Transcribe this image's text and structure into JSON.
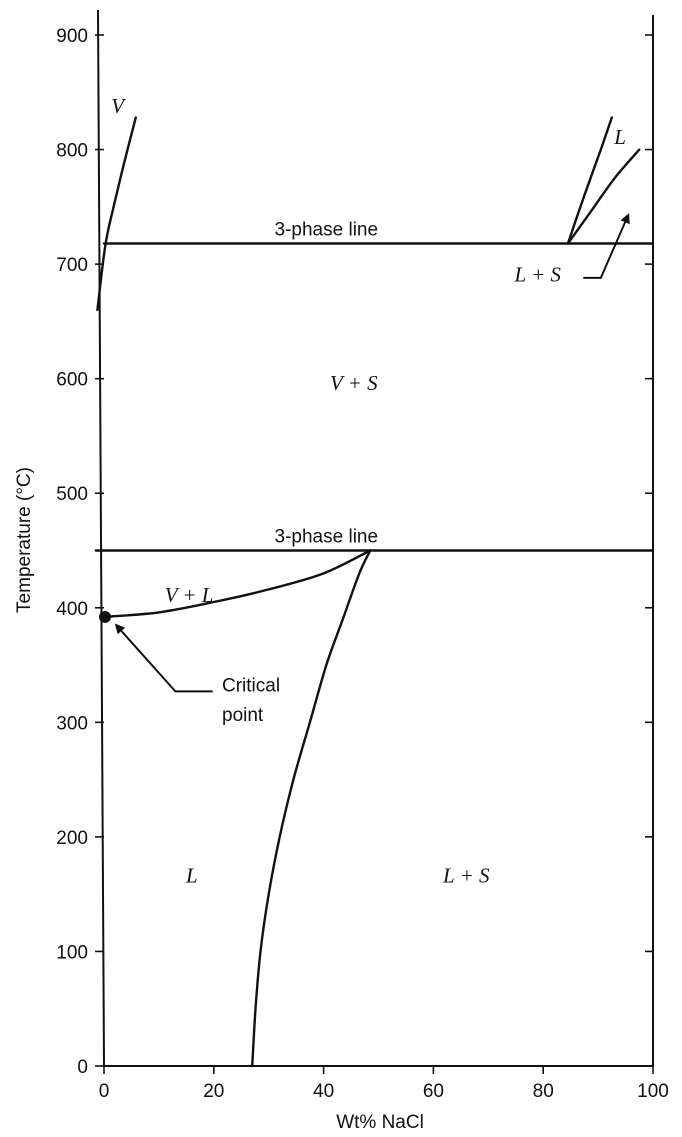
{
  "chart_data": {
    "type": "line",
    "title": "",
    "xlabel": "Wt% NaCl",
    "ylabel": "Temperature (°C)",
    "xlim": [
      0,
      100
    ],
    "ylim": [
      0,
      900
    ],
    "x_ticks": [
      0,
      20,
      40,
      60,
      80,
      100
    ],
    "y_ticks": [
      0,
      100,
      200,
      300,
      400,
      500,
      600,
      700,
      800,
      900
    ],
    "grid": false,
    "curves": [
      {
        "id": "vapor-boundary",
        "x": [
          -1.2,
          0.2,
          1.5,
          3.5,
          5.8
        ],
        "y": [
          660,
          715,
          745,
          785,
          828
        ]
      },
      {
        "id": "halite-liquidus-line",
        "x": [
          84.5,
          87.5,
          90.5,
          92.5
        ],
        "y": [
          718,
          760,
          800,
          828
        ]
      },
      {
        "id": "halite-liquidus-upper",
        "x": [
          84.5,
          89,
          93,
          97.5
        ],
        "y": [
          718,
          748,
          775,
          800
        ]
      },
      {
        "id": "upper-three-phase-line",
        "x": [
          0,
          100
        ],
        "y": [
          718,
          718
        ]
      },
      {
        "id": "lower-three-phase-line",
        "x": [
          -1.5,
          100
        ],
        "y": [
          450,
          450
        ]
      },
      {
        "id": "vapor-liquid-boundary",
        "x": [
          0,
          10,
          20,
          30,
          40,
          48.5
        ],
        "y": [
          392,
          396,
          405,
          416,
          430,
          450
        ]
      },
      {
        "id": "halite-saturation-curve",
        "x": [
          27,
          27.6,
          28.5,
          30,
          32,
          34.5,
          37.5,
          40.5,
          43.5,
          46.5,
          48.5
        ],
        "y": [
          0,
          50,
          100,
          150,
          200,
          250,
          300,
          350,
          390,
          430,
          450
        ]
      }
    ],
    "critical_point": {
      "x": 0,
      "y": 392
    },
    "annotations": [
      {
        "id": "three-phase-upper",
        "text": "3-phase line",
        "x": 40.5,
        "y": 725,
        "style": "sans"
      },
      {
        "id": "three-phase-lower",
        "text": "3-phase line",
        "x": 40.5,
        "y": 457,
        "style": "sans"
      },
      {
        "id": "region-v",
        "text": "V",
        "x": 2.5,
        "y": 832,
        "style": "italic"
      },
      {
        "id": "region-l-top",
        "text": "L",
        "x": 94,
        "y": 805,
        "style": "italic"
      },
      {
        "id": "region-l-plus-s-top",
        "text": "L + S",
        "x": 79,
        "y": 685,
        "style": "italic"
      },
      {
        "id": "region-v-plus-s",
        "text": "V + S",
        "x": 45.5,
        "y": 590,
        "style": "italic"
      },
      {
        "id": "region-v-plus-l",
        "text": "V + L",
        "x": 15.5,
        "y": 405,
        "style": "italic"
      },
      {
        "id": "critical-label-1",
        "text": "Critical",
        "x": 21.5,
        "y": 327,
        "style": "sans"
      },
      {
        "id": "critical-label-2",
        "text": "point",
        "x": 21.5,
        "y": 301,
        "style": "sans"
      },
      {
        "id": "region-l-bottom",
        "text": "L",
        "x": 16,
        "y": 160,
        "style": "italic"
      },
      {
        "id": "region-l-plus-s-bottom",
        "text": "L + S",
        "x": 66,
        "y": 160,
        "style": "italic"
      }
    ]
  }
}
